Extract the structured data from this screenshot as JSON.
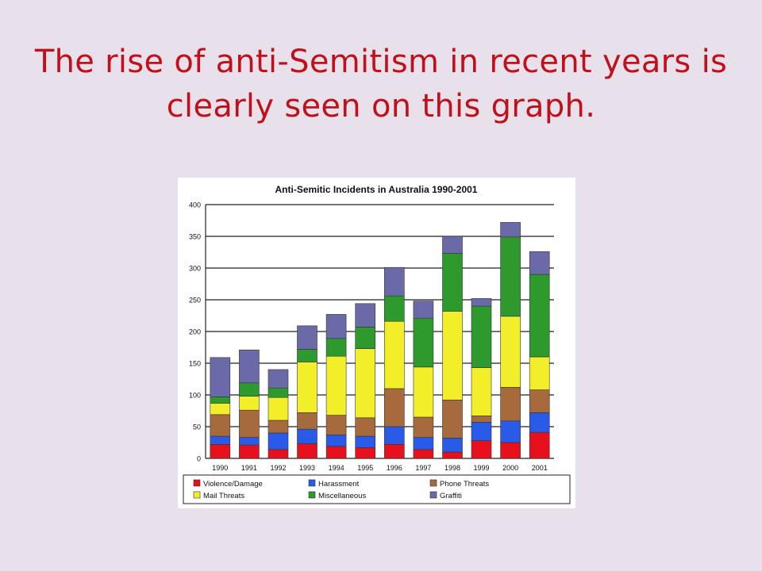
{
  "slide": {
    "title": "The rise of anti-Semitism in recent years is clearly seen on this graph."
  },
  "chart_data": {
    "type": "bar",
    "stacked": true,
    "title": "Anti-Semitic Incidents in Australia 1990-2001",
    "xlabel": "",
    "ylabel": "",
    "ylim": [
      0,
      400
    ],
    "yticks": [
      0,
      50,
      100,
      150,
      200,
      250,
      300,
      350,
      400
    ],
    "grid": true,
    "legend_position": "bottom",
    "categories": [
      "1990",
      "1991",
      "1992",
      "1993",
      "1994",
      "1995",
      "1996",
      "1997",
      "1998",
      "1999",
      "2000",
      "2001"
    ],
    "series": [
      {
        "name": "Violence/Damage",
        "color": "#e8101c",
        "values": [
          22,
          21,
          14,
          23,
          19,
          17,
          22,
          14,
          10,
          28,
          25,
          41
        ]
      },
      {
        "name": "Harassment",
        "color": "#2a5be8",
        "values": [
          13,
          12,
          26,
          23,
          18,
          18,
          28,
          19,
          22,
          29,
          34,
          31
        ]
      },
      {
        "name": "Phone Threats",
        "color": "#a76a3c",
        "values": [
          34,
          43,
          20,
          26,
          31,
          29,
          60,
          32,
          60,
          10,
          53,
          36
        ]
      },
      {
        "name": "Mail Threats",
        "color": "#f2ef2a",
        "values": [
          18,
          22,
          36,
          80,
          93,
          109,
          106,
          79,
          140,
          76,
          112,
          52
        ]
      },
      {
        "name": "Miscellaneous",
        "color": "#2e9a2e",
        "values": [
          10,
          21,
          15,
          20,
          28,
          34,
          40,
          77,
          91,
          97,
          125,
          130
        ]
      },
      {
        "name": "Graffiti",
        "color": "#6a6aa8",
        "values": [
          62,
          52,
          29,
          37,
          38,
          37,
          45,
          27,
          27,
          12,
          23,
          36
        ]
      }
    ]
  }
}
